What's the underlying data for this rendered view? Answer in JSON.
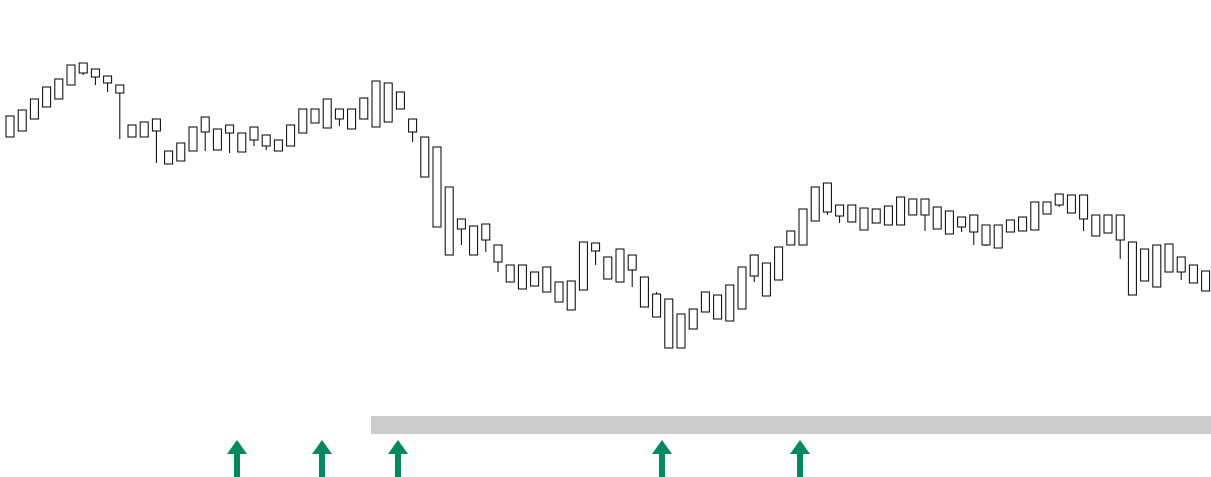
{
  "chart_data": {
    "type": "candlestick",
    "title": "",
    "xlabel": "",
    "ylabel": "",
    "ylim": [
      0,
      477
    ],
    "grid": false,
    "legend": "none",
    "colors": {
      "background": "#ffffff",
      "bullish_body": "#ffffff",
      "bearish_body": "#000000",
      "candle_outline": "#000000",
      "support_zone": "#cccccc",
      "arrow": "#008a5e"
    },
    "support_zone": {
      "low": 43,
      "high": 61,
      "x_start": 30,
      "x_end": 185
    },
    "candles": [
      [
        0,
        340,
        347,
        359,
        361
      ],
      [
        1,
        346,
        358,
        362,
        367
      ],
      [
        2,
        358,
        372,
        370,
        378
      ],
      [
        3,
        370,
        378,
        386,
        390
      ],
      [
        4,
        378,
        390,
        392,
        398
      ],
      [
        5,
        392,
        402,
        408,
        412
      ],
      [
        6,
        404,
        410,
        402,
        414
      ],
      [
        7,
        400,
        402,
        392,
        408
      ],
      [
        8,
        394,
        396,
        385,
        401
      ],
      [
        9,
        384,
        390,
        338,
        392
      ],
      [
        10,
        340,
        347,
        342,
        352
      ],
      [
        11,
        340,
        345,
        348,
        355
      ],
      [
        12,
        346,
        354,
        314,
        358
      ],
      [
        13,
        313,
        320,
        320,
        326
      ],
      [
        14,
        316,
        322,
        328,
        334
      ],
      [
        15,
        326,
        334,
        345,
        350
      ],
      [
        16,
        345,
        355,
        326,
        360
      ],
      [
        17,
        327,
        332,
        344,
        348
      ],
      [
        18,
        344,
        348,
        324,
        352
      ],
      [
        19,
        325,
        331,
        340,
        344
      ],
      [
        20,
        337,
        345,
        331,
        350
      ],
      [
        21,
        331,
        337,
        327,
        342
      ],
      [
        22,
        326,
        329,
        331,
        337
      ],
      [
        23,
        331,
        337,
        345,
        352
      ],
      [
        24,
        344,
        348,
        354,
        368
      ],
      [
        25,
        354,
        360,
        356,
        368
      ],
      [
        26,
        349,
        356,
        358,
        378
      ],
      [
        27,
        358,
        365,
        351,
        368
      ],
      [
        28,
        348,
        351,
        357,
        368
      ],
      [
        29,
        358,
        366,
        367,
        379
      ],
      [
        30,
        350,
        368,
        373,
        396
      ],
      [
        31,
        355,
        378,
        380,
        394
      ],
      [
        32,
        368,
        380,
        368,
        385
      ],
      [
        33,
        345,
        350,
        335,
        358
      ],
      [
        34,
        300,
        330,
        310,
        340
      ],
      [
        35,
        250,
        315,
        271,
        330
      ],
      [
        36,
        222,
        278,
        246,
        290
      ],
      [
        37,
        248,
        254,
        232,
        258
      ],
      [
        38,
        222,
        228,
        247,
        251
      ],
      [
        39,
        237,
        247,
        225,
        253
      ],
      [
        40,
        215,
        225,
        205,
        232
      ],
      [
        41,
        195,
        206,
        205,
        212
      ],
      [
        42,
        188,
        205,
        196,
        212
      ],
      [
        43,
        191,
        198,
        198,
        205
      ],
      [
        44,
        185,
        198,
        188,
        210
      ],
      [
        45,
        175,
        188,
        182,
        195
      ],
      [
        46,
        167,
        181,
        182,
        196
      ],
      [
        47,
        187,
        196,
        226,
        235
      ],
      [
        48,
        226,
        230,
        212,
        234
      ],
      [
        49,
        198,
        213,
        203,
        220
      ],
      [
        50,
        195,
        206,
        204,
        228
      ],
      [
        51,
        207,
        216,
        190,
        222
      ],
      [
        52,
        170,
        194,
        185,
        200
      ],
      [
        53,
        160,
        185,
        165,
        183
      ],
      [
        54,
        129,
        164,
        133,
        178
      ],
      [
        55,
        129,
        134,
        148,
        163
      ],
      [
        56,
        148,
        152,
        166,
        168
      ],
      [
        57,
        165,
        176,
        168,
        185
      ],
      [
        58,
        158,
        172,
        163,
        182
      ],
      [
        59,
        156,
        167,
        183,
        192
      ],
      [
        60,
        168,
        177,
        202,
        210
      ],
      [
        61,
        201,
        210,
        195,
        222
      ],
      [
        62,
        181,
        197,
        184,
        214
      ],
      [
        63,
        197,
        205,
        222,
        230
      ],
      [
        64,
        232,
        236,
        242,
        246
      ],
      [
        65,
        232,
        246,
        260,
        268
      ],
      [
        66,
        256,
        262,
        270,
        290
      ],
      [
        67,
        265,
        270,
        262,
        294
      ],
      [
        68,
        261,
        268,
        254,
        272
      ],
      [
        69,
        255,
        266,
        258,
        272
      ],
      [
        70,
        247,
        258,
        260,
        269
      ],
      [
        71,
        254,
        264,
        255,
        268
      ],
      [
        72,
        252,
        259,
        252,
        271
      ],
      [
        73,
        252,
        262,
        263,
        280
      ],
      [
        74,
        262,
        266,
        264,
        278
      ],
      [
        75,
        262,
        266,
        246,
        278
      ],
      [
        76,
        248,
        256,
        251,
        270
      ],
      [
        77,
        243,
        252,
        251,
        266
      ],
      [
        78,
        250,
        258,
        245,
        260
      ],
      [
        79,
        245,
        258,
        232,
        262
      ],
      [
        80,
        232,
        240,
        231,
        252
      ],
      [
        81,
        229,
        238,
        248,
        252
      ],
      [
        82,
        245,
        248,
        247,
        257
      ],
      [
        83,
        246,
        250,
        247,
        260
      ],
      [
        84,
        247,
        254,
        265,
        275
      ],
      [
        85,
        263,
        268,
        270,
        275
      ],
      [
        86,
        272,
        275,
        270,
        283
      ],
      [
        87,
        264,
        270,
        273,
        282
      ],
      [
        88,
        258,
        273,
        246,
        282
      ],
      [
        89,
        241,
        250,
        244,
        262
      ],
      [
        90,
        244,
        248,
        246,
        262
      ],
      [
        91,
        237,
        247,
        218,
        262
      ],
      [
        92,
        182,
        224,
        190,
        235
      ],
      [
        93,
        196,
        200,
        205,
        228
      ],
      [
        94,
        190,
        205,
        212,
        232
      ],
      [
        95,
        205,
        213,
        212,
        233
      ],
      [
        96,
        205,
        213,
        197,
        220
      ],
      [
        97,
        194,
        199,
        198,
        212
      ],
      [
        98,
        186,
        198,
        190,
        206
      ]
    ]
  }
}
